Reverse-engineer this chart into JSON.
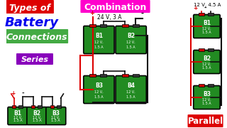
{
  "bg_color": "#ffffff",
  "title_box_color": "#dd0000",
  "title_text": "Types of",
  "title2_text": "Battery",
  "title3_text": "Connections",
  "title3_bg": "#44aa44",
  "combination_label": "Combination",
  "combination_bg": "#ff00cc",
  "comb_specs": "24 V, 3 A",
  "series_label": "Series",
  "series_color": "#9900cc",
  "series_bg": "#cc66ff",
  "parallel_label": "Parallel",
  "parallel_color": "#ffffff",
  "parallel_bg": "#dd0000",
  "parallel_specs": "12 V, 4.5 A",
  "battery_fill": "#228b22",
  "wire_red": "#dd0000",
  "wire_black": "#111111"
}
